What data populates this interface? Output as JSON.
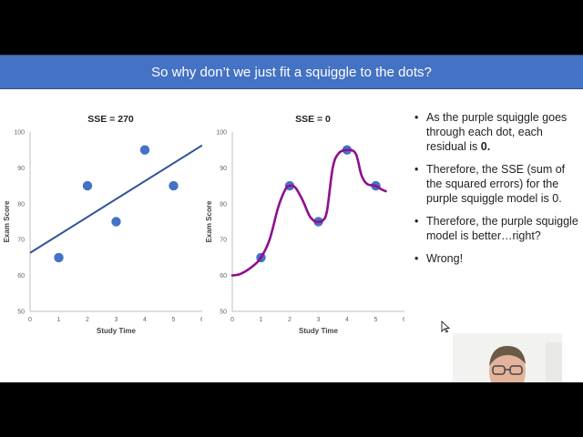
{
  "slide": {
    "title": "So why don’t we just fit a squiggle to the dots?",
    "bullets": [
      {
        "text": "As the purple squiggle goes through each dot, each residual is ",
        "bold": "0."
      },
      {
        "text": "Therefore, the SSE (sum of the squared errors) for the purple squiggle model is 0.",
        "bold": ""
      },
      {
        "text": "Therefore, the purple squiggle model is better…right?",
        "bold": ""
      },
      {
        "text": "Wrong!",
        "bold": ""
      }
    ],
    "bullet_char": "•"
  },
  "toolbar": {
    "icons": [
      "prev-icon",
      "next-icon",
      "pen-icon",
      "laser-icon",
      "zoom-icon",
      "grid-icon",
      "subtitle-icon",
      "more-icon"
    ]
  },
  "colors": {
    "title_bar": "#4472c4",
    "dot": "#4472c4",
    "fit_line": "#2f5597",
    "squiggle": "#8e0f8e"
  },
  "chart_data": [
    {
      "type": "scatter",
      "title": "SSE = 270",
      "xlabel": "Study Time",
      "ylabel": "Exam Score",
      "xlim": [
        0,
        6
      ],
      "ylim": [
        50,
        100
      ],
      "xticks": [
        0,
        1,
        2,
        3,
        4,
        5,
        6
      ],
      "yticks": [
        50,
        60,
        70,
        80,
        90,
        100
      ],
      "grid": false,
      "points": [
        [
          1,
          65
        ],
        [
          2,
          85
        ],
        [
          3,
          75
        ],
        [
          4,
          95
        ],
        [
          5,
          85
        ]
      ],
      "fit_line": [
        [
          0,
          66.3
        ],
        [
          6,
          96.3
        ]
      ]
    },
    {
      "type": "scatter",
      "title": "SSE = 0",
      "xlabel": "Study Time",
      "ylabel": "Exam Score",
      "xlim": [
        0,
        6
      ],
      "ylim": [
        50,
        100
      ],
      "xticks": [
        0,
        1,
        2,
        3,
        4,
        5,
        6
      ],
      "yticks": [
        50,
        60,
        70,
        80,
        90,
        100
      ],
      "grid": false,
      "points": [
        [
          1,
          65
        ],
        [
          2,
          85
        ],
        [
          3,
          75
        ],
        [
          4,
          95
        ],
        [
          5,
          85
        ]
      ],
      "squiggle": [
        [
          0,
          60
        ],
        [
          0.3,
          60.5
        ],
        [
          0.7,
          62.5
        ],
        [
          1,
          65
        ],
        [
          1.3,
          70
        ],
        [
          1.6,
          79
        ],
        [
          1.85,
          84
        ],
        [
          2,
          85
        ],
        [
          2.2,
          84.5
        ],
        [
          2.45,
          81
        ],
        [
          2.7,
          76.5
        ],
        [
          2.9,
          75
        ],
        [
          3,
          75
        ],
        [
          3.15,
          75.3
        ],
        [
          3.3,
          78
        ],
        [
          3.5,
          90
        ],
        [
          3.7,
          94
        ],
        [
          4,
          95
        ],
        [
          4.3,
          94
        ],
        [
          4.5,
          88
        ],
        [
          4.7,
          85.5
        ],
        [
          5,
          85
        ],
        [
          5.2,
          84
        ],
        [
          5.35,
          83.5
        ]
      ]
    }
  ]
}
